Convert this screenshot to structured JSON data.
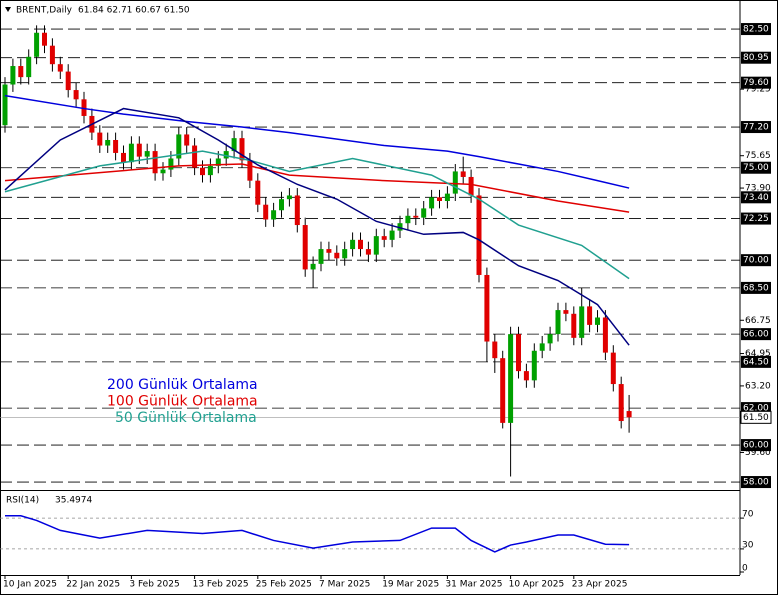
{
  "chart_data": {
    "type": "candlestick",
    "symbol": "BRENT,Daily",
    "header_values": "61.84 62.71 60.67 61.50",
    "categories": [
      "10 Jan 2025",
      null,
      null,
      null,
      null,
      null,
      null,
      null,
      "22 Jan 2025",
      null,
      null,
      null,
      null,
      null,
      null,
      null,
      "3 Feb 2025",
      null,
      null,
      null,
      null,
      null,
      null,
      null,
      "13 Feb 2025",
      null,
      null,
      null,
      null,
      null,
      null,
      null,
      "25 Feb 2025",
      null,
      null,
      null,
      null,
      null,
      null,
      null,
      "7 Mar 2025",
      null,
      null,
      null,
      null,
      null,
      null,
      null,
      "19 Mar 2025",
      null,
      null,
      null,
      null,
      null,
      null,
      null,
      "31 Mar 2025",
      null,
      null,
      null,
      null,
      null,
      null,
      null,
      "10 Apr 2025",
      null,
      null,
      null,
      null,
      null,
      null,
      null,
      "23 Apr 2025",
      null,
      null,
      null,
      null,
      null,
      null,
      null
    ],
    "open": [
      77.3,
      79.5,
      80.5,
      79.9,
      81.0,
      82.3,
      81.6,
      80.6,
      80.2,
      79.2,
      78.7,
      77.8,
      76.9,
      76.2,
      76.5,
      75.8,
      75.3,
      76.3,
      75.6,
      75.9,
      74.7,
      74.9,
      75.5,
      76.8,
      76.2,
      75.0,
      74.6,
      75.1,
      75.5,
      75.9,
      76.6,
      75.4,
      74.3,
      73.0,
      72.2,
      72.7,
      73.3,
      73.5,
      71.9,
      69.5,
      69.8,
      70.6,
      70.4,
      70.1,
      70.6,
      71.1,
      70.6,
      70.3,
      71.3,
      71.1,
      71.6,
      72.0,
      72.4,
      72.3,
      72.8,
      73.4,
      73.2,
      73.6,
      74.8,
      74.5,
      73.5,
      69.2,
      65.6,
      64.7,
      61.2,
      66.0,
      64.0,
      63.5,
      65.1,
      65.5,
      66.0,
      67.3,
      67.1,
      65.8,
      67.5,
      66.5,
      66.9,
      65.0,
      63.3,
      61.84
    ],
    "high": [
      79.9,
      80.9,
      80.9,
      81.4,
      82.7,
      82.7,
      82.0,
      81.0,
      80.6,
      79.6,
      79.1,
      78.2,
      77.3,
      76.9,
      76.9,
      76.2,
      76.7,
      76.7,
      76.3,
      76.3,
      75.3,
      75.9,
      77.2,
      77.2,
      76.6,
      75.4,
      75.5,
      75.9,
      76.3,
      77.0,
      77.0,
      75.8,
      74.7,
      73.4,
      73.1,
      73.7,
      73.9,
      73.9,
      72.3,
      70.2,
      71.0,
      71.0,
      70.8,
      71.0,
      71.5,
      71.5,
      71.0,
      71.7,
      71.7,
      72.0,
      72.4,
      72.8,
      72.8,
      73.2,
      73.8,
      73.8,
      74.0,
      75.2,
      75.6,
      74.9,
      73.9,
      69.6,
      66.0,
      65.1,
      66.4,
      66.4,
      64.4,
      65.5,
      65.9,
      66.4,
      67.7,
      67.7,
      67.5,
      68.5,
      67.9,
      67.3,
      67.3,
      65.4,
      63.7,
      62.71
    ],
    "low": [
      76.9,
      79.1,
      79.5,
      79.5,
      80.6,
      81.2,
      80.2,
      79.8,
      78.8,
      78.3,
      77.4,
      76.5,
      75.8,
      75.8,
      75.4,
      74.9,
      74.9,
      75.2,
      75.2,
      74.3,
      74.3,
      74.5,
      75.1,
      75.8,
      74.6,
      74.2,
      74.2,
      74.7,
      75.1,
      75.5,
      75.0,
      73.9,
      72.6,
      71.8,
      71.8,
      72.3,
      72.9,
      71.5,
      69.1,
      68.5,
      69.4,
      70.0,
      69.7,
      69.7,
      70.2,
      70.2,
      69.9,
      69.9,
      70.7,
      70.7,
      71.2,
      71.6,
      71.9,
      71.9,
      72.4,
      72.8,
      72.8,
      73.2,
      74.1,
      73.1,
      68.8,
      64.5,
      63.9,
      60.9,
      58.3,
      63.6,
      63.1,
      63.1,
      64.7,
      65.1,
      65.6,
      66.7,
      65.4,
      65.4,
      66.1,
      66.1,
      64.6,
      62.9,
      60.9,
      60.67
    ],
    "close": [
      79.5,
      80.5,
      79.9,
      81.0,
      82.3,
      81.6,
      80.6,
      80.2,
      79.2,
      78.7,
      77.8,
      76.9,
      76.2,
      76.5,
      75.8,
      75.3,
      76.3,
      75.6,
      75.9,
      74.7,
      74.9,
      75.5,
      76.8,
      76.2,
      75.0,
      74.6,
      75.1,
      75.5,
      75.9,
      76.6,
      75.4,
      74.3,
      73.0,
      72.2,
      72.7,
      73.3,
      73.5,
      71.9,
      69.5,
      69.8,
      70.6,
      70.4,
      70.1,
      70.6,
      71.1,
      70.6,
      70.3,
      71.3,
      71.1,
      71.6,
      72.0,
      72.4,
      72.3,
      72.8,
      73.4,
      73.2,
      73.6,
      74.8,
      74.5,
      73.5,
      69.2,
      65.6,
      64.7,
      61.2,
      66.0,
      64.0,
      63.5,
      65.1,
      65.5,
      66.0,
      67.3,
      67.1,
      65.8,
      67.5,
      66.5,
      66.9,
      65.0,
      63.3,
      61.3,
      61.5
    ],
    "up_color": "#00a000",
    "down_color": "#e00000",
    "ylim": [
      57.57,
      83.26
    ],
    "yticks": [
      79.25,
      75.65,
      {
        "value": 73.9,
        "label": "73.90"
      },
      66.75,
      64.95,
      {
        "value": 63.2,
        "label": "63.20"
      },
      {
        "value": 59.6,
        "label": "59.60"
      }
    ],
    "levels": [
      {
        "value": 82.5,
        "label": "82.50"
      },
      {
        "value": 80.95,
        "label": "80.95"
      },
      {
        "value": 79.6,
        "label": "79.60"
      },
      {
        "value": 77.2,
        "label": "77.20"
      },
      {
        "value": 75.0,
        "label": "75.00"
      },
      {
        "value": 73.4,
        "label": "73.40"
      },
      {
        "value": 72.25,
        "label": "72.25"
      },
      {
        "value": 70.0,
        "label": "70.00"
      },
      {
        "value": 68.5,
        "label": "68.50"
      },
      {
        "value": 66.0,
        "label": "66.00"
      },
      {
        "value": 64.5,
        "label": "64.50"
      },
      {
        "value": 62.0,
        "label": "62.00"
      },
      {
        "value": 60.0,
        "label": "60.00"
      },
      {
        "value": 58.0,
        "label": "58.00"
      }
    ],
    "price_label": {
      "value": 61.5,
      "label": "61.50"
    },
    "series": [
      {
        "name": "200 Günlük Ortalama",
        "color": "#0000dd",
        "x": [
          0,
          10,
          15,
          23,
          30,
          36,
          48,
          56,
          60,
          65,
          70,
          75,
          79
        ],
        "values": [
          78.9,
          78.2,
          77.9,
          77.5,
          77.2,
          76.9,
          76.2,
          75.9,
          75.6,
          75.2,
          74.8,
          74.3,
          73.9
        ]
      },
      {
        "name": "100 Günlük Ortalama",
        "color": "#e00000",
        "x": [
          0,
          22,
          30,
          36,
          48,
          59,
          70,
          79
        ],
        "values": [
          74.3,
          75.1,
          75.2,
          74.6,
          74.3,
          74.1,
          73.2,
          72.6
        ]
      },
      {
        "name": "50 Günlük Ortalama",
        "color": "#20a090",
        "x": [
          0,
          12,
          25,
          31,
          36,
          44,
          54,
          60,
          65,
          73,
          79
        ],
        "values": [
          73.7,
          75.1,
          75.9,
          75.4,
          74.8,
          75.5,
          74.6,
          73.3,
          71.9,
          70.8,
          69.0
        ]
      },
      {
        "color": "#000080",
        "x": [
          0,
          7,
          15,
          22,
          27,
          32,
          37,
          42,
          47,
          53,
          58,
          60,
          65,
          70,
          75,
          79
        ],
        "values": [
          73.8,
          76.5,
          78.2,
          77.7,
          76.5,
          75.15,
          74.1,
          73.3,
          72.1,
          71.4,
          71.5,
          71.1,
          69.7,
          68.9,
          67.6,
          65.4
        ]
      }
    ],
    "rsi": {
      "type": "line",
      "title": "RSI(14)",
      "value": 35.4974,
      "color": "#0000dd",
      "ylim": [
        0,
        100
      ],
      "yticks": [
        70,
        30,
        0
      ],
      "levels": [
        70,
        30
      ],
      "x": [
        0,
        2,
        4,
        7,
        12,
        18,
        25,
        30,
        34,
        39,
        44,
        50,
        54,
        57,
        59,
        62,
        64,
        66,
        70,
        72,
        76,
        79
      ],
      "values": [
        73,
        73,
        67,
        54,
        44,
        54,
        50,
        54,
        41,
        31,
        39,
        41,
        57,
        57,
        41,
        26,
        35,
        39,
        48,
        48,
        36,
        35.4974
      ]
    }
  }
}
